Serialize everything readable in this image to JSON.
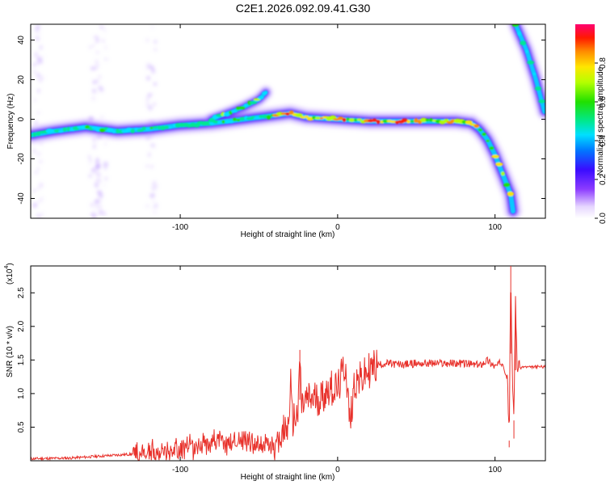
{
  "figure": {
    "title": "C2E1.2026.092.09.41.G30"
  },
  "chart_data": [
    {
      "type": "heatmap",
      "title": "",
      "xlabel": "Height of straight line (km)",
      "ylabel": "Frequency (Hz)",
      "xlim": [
        -195,
        132
      ],
      "ylim": [
        -50,
        48
      ],
      "xticks": [
        -100,
        0,
        100
      ],
      "xtick_labels": [
        "-100",
        "0",
        "100"
      ],
      "yticks": [
        -40,
        -20,
        0,
        20,
        40
      ],
      "ytick_labels": [
        "-40",
        "-20",
        "0",
        "20",
        "40"
      ],
      "ridge_main": {
        "x": [
          -195,
          -180,
          -160,
          -140,
          -120,
          -100,
          -80,
          -60,
          -40,
          -30,
          -20,
          0,
          20,
          40,
          60,
          75,
          85,
          90,
          95,
          100,
          105,
          110,
          112
        ],
        "y": [
          -8,
          -6,
          -4,
          -6,
          -5,
          -3,
          -2,
          0,
          2,
          3,
          1,
          0,
          -1,
          -1,
          -1,
          -1,
          -2,
          -5,
          -10,
          -18,
          -28,
          -38,
          -50
        ]
      },
      "ridge_secondary": {
        "x": [
          -80,
          -70,
          -60,
          -50,
          -45
        ],
        "y": [
          0,
          3,
          6,
          10,
          14
        ]
      },
      "ridge_right": {
        "x": [
          113,
          120,
          126,
          132
        ],
        "y": [
          48,
          35,
          20,
          2
        ]
      },
      "colorbar": {
        "label": "Normalized spectral amplitude",
        "range": [
          0,
          1
        ],
        "ticks": [
          0.0,
          0.2,
          0.4,
          0.6,
          0.8
        ],
        "tick_labels": [
          "0.0",
          "0.2",
          "0.4",
          "0.6",
          "0.8"
        ]
      }
    },
    {
      "type": "line",
      "title": "",
      "xlabel": "Height of straight line (km)",
      "ylabel": "SNR (10 * v/v)",
      "y_multiplier_label": "(x10",
      "y_multiplier_exponent": "4",
      "xlim": [
        -195,
        132
      ],
      "ylim": [
        0,
        2.9
      ],
      "xticks": [
        -100,
        0,
        100
      ],
      "xtick_labels": [
        "-100",
        "0",
        "100"
      ],
      "yticks": [
        0.5,
        1.0,
        1.5,
        2.0,
        2.5
      ],
      "ytick_labels": [
        "0.5",
        "1.0",
        "1.5",
        "2.0",
        "2.5"
      ],
      "series": [
        {
          "name": "SNR",
          "color": "#e8302a",
          "x": [
            -195,
            -170,
            -150,
            -130,
            -110,
            -90,
            -80,
            -70,
            -60,
            -50,
            -40,
            -35,
            -31,
            -30,
            -29,
            -25,
            -24,
            -23,
            -20,
            -10,
            -5,
            0,
            5,
            8,
            10,
            12,
            15,
            20,
            25,
            30,
            40,
            50,
            60,
            70,
            80,
            90,
            95,
            100,
            105,
            108,
            109,
            110,
            111,
            112,
            113,
            114,
            115,
            116,
            118,
            122,
            126,
            132
          ],
          "values": [
            0.03,
            0.04,
            0.07,
            0.1,
            0.14,
            0.22,
            0.3,
            0.26,
            0.32,
            0.25,
            0.2,
            0.4,
            0.5,
            1.25,
            0.6,
            0.7,
            1.65,
            0.8,
            0.9,
            0.95,
            1.1,
            1.05,
            1.45,
            0.5,
            1.1,
            1.2,
            1.2,
            1.35,
            1.42,
            1.45,
            1.43,
            1.45,
            1.45,
            1.45,
            1.45,
            1.42,
            1.5,
            1.4,
            1.48,
            1.2,
            0.3,
            2.9,
            1.2,
            0.6,
            2.45,
            1.4,
            1.4,
            1.38,
            1.4,
            1.39,
            1.4,
            1.4
          ]
        }
      ]
    }
  ]
}
